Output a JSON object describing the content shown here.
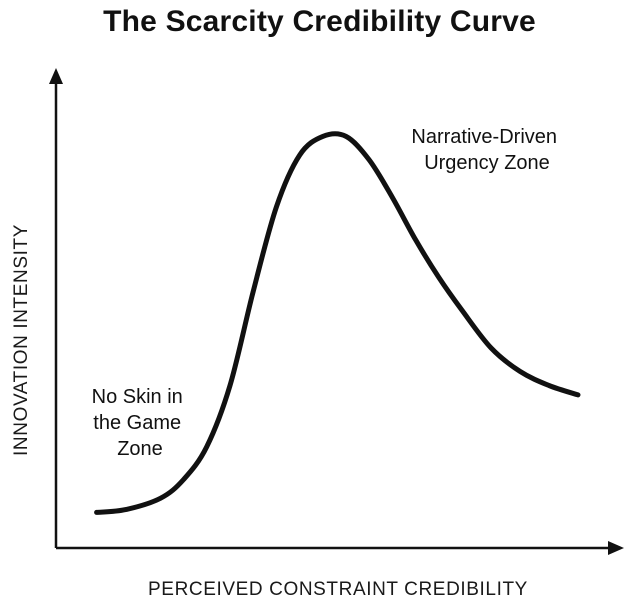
{
  "chart_data": {
    "type": "line",
    "title": "The Scarcity Credibility Curve",
    "xlabel": "PERCEIVED CONSTRAINT CREDIBILITY",
    "ylabel": "INNOVATION INTENSITY",
    "xlim": [
      0,
      100
    ],
    "ylim": [
      0,
      100
    ],
    "grid": false,
    "axis_tick_labels": false,
    "series": [
      {
        "x": [
          7,
          12,
          18,
          22,
          26,
          30,
          34,
          38,
          42,
          46,
          50,
          54,
          58,
          62,
          66,
          70,
          75,
          80,
          85,
          90
        ],
        "values": [
          8,
          8.6,
          11,
          15,
          22,
          35,
          55,
          73,
          84,
          88,
          88,
          83,
          75,
          66,
          58,
          51,
          43,
          38,
          35,
          33
        ]
      }
    ],
    "annotations": [
      {
        "lines": [
          "No Skin in",
          "the Game",
          "Zone"
        ]
      },
      {
        "lines": [
          "Narrative-Driven",
          "Urgency Zone"
        ]
      }
    ],
    "colors": {
      "line": "#111111",
      "axis": "#111111",
      "background": "#ffffff"
    }
  }
}
